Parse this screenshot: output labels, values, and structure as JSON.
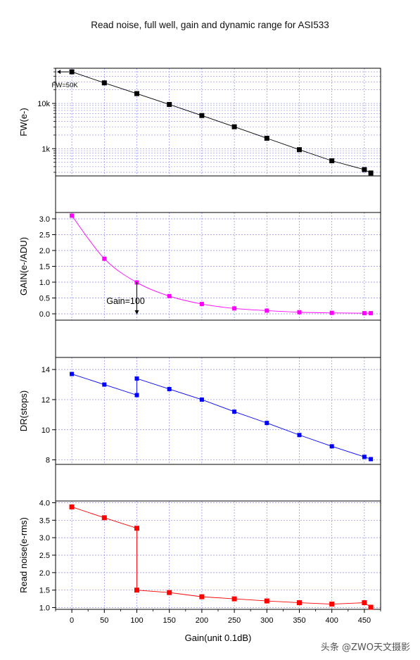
{
  "title": "Read noise, full well, gain and dynamic range for ASI533",
  "watermark": "头条 @ZWO天文摄影",
  "colors": {
    "fw": "#000000",
    "gain": "#ff00ff",
    "dr": "#0000ff",
    "rn": "#ff0000",
    "grid": "#8a8af0"
  },
  "chart_data": [
    {
      "type": "scatter",
      "title": "",
      "xlabel": "Gain(unit 0.1dB)",
      "ylabel": "FW(e-)",
      "yscale": "log",
      "ylim": [
        250,
        60000
      ],
      "yticks": [
        {
          "v": 1000,
          "label": "1k"
        },
        {
          "v": 10000,
          "label": "10k"
        }
      ],
      "series": [
        {
          "x": [
            0,
            50,
            100,
            150,
            200,
            250,
            300,
            350,
            400,
            450,
            460
          ],
          "y": [
            50000,
            28500,
            16500,
            9500,
            5400,
            3050,
            1700,
            950,
            540,
            345,
            290
          ]
        }
      ],
      "annotation": {
        "text": "FW=50K",
        "arrow_to": [
          0,
          50000
        ]
      }
    },
    {
      "type": "scatter",
      "title": "",
      "xlabel": "Gain(unit 0.1dB)",
      "ylabel": "GAIN(e-/ADU)",
      "ylim": [
        -0.2,
        3.2
      ],
      "yticks": [
        {
          "v": 0,
          "label": "0.0"
        },
        {
          "v": 0.5,
          "label": "0.5"
        },
        {
          "v": 1,
          "label": "1.0"
        },
        {
          "v": 1.5,
          "label": "1.5"
        },
        {
          "v": 2,
          "label": "2.0"
        },
        {
          "v": 2.5,
          "label": "2.5"
        },
        {
          "v": 3,
          "label": "3.0"
        }
      ],
      "series": [
        {
          "x": [
            0,
            50,
            100,
            150,
            200,
            250,
            300,
            350,
            400,
            450,
            460
          ],
          "y": [
            3.1,
            1.74,
            0.99,
            0.56,
            0.31,
            0.17,
            0.1,
            0.05,
            0.03,
            0.02,
            0.02
          ]
        }
      ],
      "annotation": {
        "text": "Gain=100",
        "arrow_to": [
          100,
          1.0
        ]
      }
    },
    {
      "type": "scatter",
      "title": "",
      "xlabel": "Gain(unit 0.1dB)",
      "ylabel": "DR(stops)",
      "ylim": [
        7.7,
        14.8
      ],
      "yticks": [
        {
          "v": 8,
          "label": "8"
        },
        {
          "v": 10,
          "label": "10"
        },
        {
          "v": 12,
          "label": "12"
        },
        {
          "v": 14,
          "label": "14"
        }
      ],
      "series": [
        {
          "x": [
            0,
            50,
            100,
            100,
            150,
            200,
            250,
            300,
            350,
            400,
            450,
            460
          ],
          "y": [
            13.7,
            13.0,
            12.3,
            13.4,
            12.7,
            12.0,
            11.2,
            10.45,
            9.65,
            8.9,
            8.2,
            8.05
          ]
        }
      ]
    },
    {
      "type": "scatter",
      "title": "",
      "xlabel": "Gain(unit 0.1dB)",
      "ylabel": "Read noise(e-rms)",
      "ylim": [
        0.95,
        4.05
      ],
      "yticks": [
        {
          "v": 1.0,
          "label": "1.0"
        },
        {
          "v": 1.5,
          "label": "1.5"
        },
        {
          "v": 2.0,
          "label": "2.0"
        },
        {
          "v": 2.5,
          "label": "2.5"
        },
        {
          "v": 3.0,
          "label": "3.0"
        },
        {
          "v": 3.5,
          "label": "3.5"
        },
        {
          "v": 4.0,
          "label": "4.0"
        }
      ],
      "series": [
        {
          "x": [
            0,
            50,
            100,
            100,
            150,
            200,
            250,
            300,
            350,
            400,
            450,
            460
          ],
          "y": [
            3.88,
            3.57,
            3.27,
            1.5,
            1.43,
            1.31,
            1.25,
            1.19,
            1.14,
            1.1,
            1.14,
            1.01
          ]
        }
      ]
    }
  ],
  "x_axis": {
    "label": "Gain(unit 0.1dB)",
    "xlim": [
      -25,
      475
    ],
    "ticks": [
      {
        "v": 0,
        "label": "0"
      },
      {
        "v": 50,
        "label": "50"
      },
      {
        "v": 100,
        "label": "100"
      },
      {
        "v": 150,
        "label": "150"
      },
      {
        "v": 200,
        "label": "200"
      },
      {
        "v": 250,
        "label": "250"
      },
      {
        "v": 300,
        "label": "300"
      },
      {
        "v": 350,
        "label": "350"
      },
      {
        "v": 400,
        "label": "400"
      },
      {
        "v": 450,
        "label": "450"
      }
    ]
  }
}
